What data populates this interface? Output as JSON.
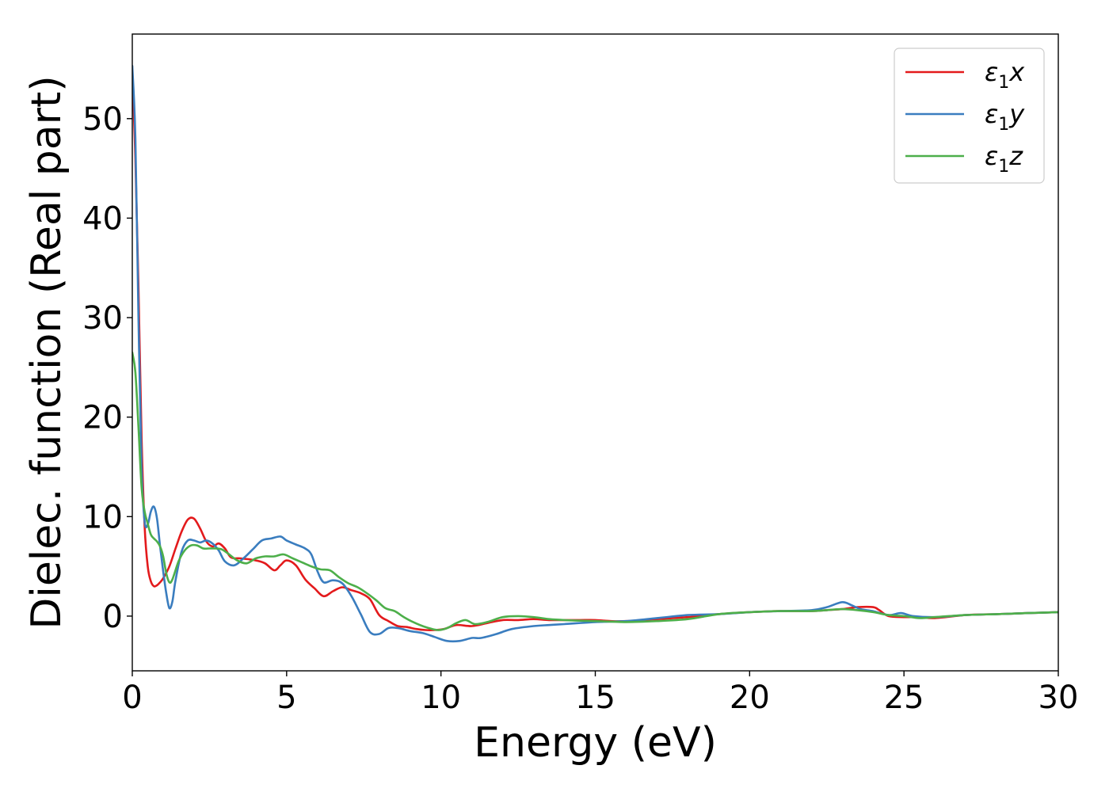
{
  "chart_data": {
    "type": "line",
    "xlabel": "Energy (eV)",
    "ylabel": "Dielec. function (Real part)",
    "xlim": [
      0,
      30
    ],
    "ylim": [
      -5.5,
      58.5
    ],
    "xticks": [
      0,
      5,
      10,
      15,
      20,
      25,
      30
    ],
    "yticks": [
      0,
      10,
      20,
      30,
      40,
      50
    ],
    "grid": false,
    "legend_position": "top-right",
    "series": [
      {
        "name": "ε1x",
        "legend_main": "ε",
        "legend_sub": "1",
        "legend_suffix": "x",
        "color": "#e31a1c",
        "x": [
          0,
          0.1,
          0.2,
          0.3,
          0.4,
          0.5,
          0.6,
          0.7,
          0.8,
          0.9,
          1.0,
          1.2,
          1.4,
          1.6,
          1.8,
          2.0,
          2.2,
          2.4,
          2.6,
          2.8,
          3.0,
          3.2,
          3.5,
          3.8,
          4.0,
          4.3,
          4.6,
          4.8,
          5.0,
          5.3,
          5.6,
          5.9,
          6.2,
          6.5,
          6.8,
          7.1,
          7.4,
          7.7,
          8.0,
          8.3,
          8.6,
          8.9,
          9.2,
          9.5,
          9.8,
          10.1,
          10.5,
          11.0,
          11.5,
          12.0,
          12.5,
          13.0,
          13.5,
          14.0,
          14.5,
          15.0,
          15.5,
          16.0,
          17.0,
          18.0,
          19.0,
          20.0,
          21.0,
          22.0,
          22.5,
          23.0,
          23.5,
          24.0,
          24.2,
          24.5,
          25.0,
          25.5,
          26.0,
          27.0,
          28.0,
          29.0,
          30.0
        ],
        "y": [
          54.5,
          46,
          33,
          18,
          9,
          5,
          3.5,
          3.0,
          3.1,
          3.4,
          3.8,
          5.0,
          6.8,
          8.5,
          9.7,
          9.8,
          8.8,
          7.5,
          7.0,
          7.3,
          6.8,
          5.9,
          5.8,
          5.7,
          5.6,
          5.3,
          4.6,
          5.1,
          5.6,
          5.1,
          3.7,
          2.8,
          2.0,
          2.5,
          2.9,
          2.6,
          2.3,
          1.7,
          0.1,
          -0.5,
          -1.0,
          -1.1,
          -1.3,
          -1.4,
          -1.4,
          -1.3,
          -0.9,
          -1.0,
          -0.7,
          -0.4,
          -0.4,
          -0.3,
          -0.4,
          -0.4,
          -0.4,
          -0.4,
          -0.5,
          -0.5,
          -0.3,
          -0.1,
          0.2,
          0.4,
          0.5,
          0.5,
          0.6,
          0.7,
          0.9,
          0.9,
          0.6,
          0.0,
          -0.1,
          -0.1,
          -0.2,
          0.1,
          0.2,
          0.3,
          0.4
        ]
      },
      {
        "name": "ε1y",
        "legend_main": "ε",
        "legend_sub": "1",
        "legend_suffix": "y",
        "color": "#3a7dbf",
        "x": [
          0,
          0.1,
          0.2,
          0.3,
          0.4,
          0.5,
          0.6,
          0.7,
          0.8,
          0.9,
          1.0,
          1.1,
          1.2,
          1.3,
          1.4,
          1.6,
          1.8,
          2.0,
          2.2,
          2.4,
          2.6,
          2.8,
          3.0,
          3.3,
          3.6,
          3.9,
          4.2,
          4.5,
          4.8,
          5.0,
          5.3,
          5.6,
          5.8,
          6.0,
          6.2,
          6.5,
          6.8,
          7.1,
          7.4,
          7.7,
          8.0,
          8.3,
          8.6,
          9.0,
          9.4,
          9.8,
          10.2,
          10.6,
          11.0,
          11.3,
          11.8,
          12.3,
          13.0,
          13.5,
          14.0,
          15.0,
          16.0,
          17.0,
          18.0,
          19.0,
          20.0,
          21.0,
          22.0,
          22.5,
          23.0,
          23.3,
          23.6,
          24.0,
          24.5,
          24.9,
          25.3,
          26.0,
          27.0,
          28.0,
          29.0,
          30.0
        ],
        "y": [
          55.3,
          48,
          30,
          15,
          9.5,
          9.2,
          10.5,
          11.0,
          9.8,
          7.0,
          4.5,
          2.3,
          0.8,
          1.5,
          3.6,
          6.5,
          7.6,
          7.6,
          7.4,
          7.6,
          7.3,
          6.6,
          5.5,
          5.1,
          5.8,
          6.7,
          7.6,
          7.8,
          8.0,
          7.6,
          7.2,
          6.8,
          6.2,
          4.5,
          3.4,
          3.6,
          3.3,
          2.0,
          0.2,
          -1.6,
          -1.8,
          -1.2,
          -1.2,
          -1.5,
          -1.7,
          -2.1,
          -2.5,
          -2.5,
          -2.2,
          -2.2,
          -1.8,
          -1.3,
          -1.0,
          -0.9,
          -0.8,
          -0.6,
          -0.5,
          -0.2,
          0.1,
          0.2,
          0.4,
          0.5,
          0.6,
          0.9,
          1.4,
          1.1,
          0.7,
          0.5,
          0.1,
          0.3,
          0.0,
          -0.1,
          0.1,
          0.2,
          0.3,
          0.4
        ]
      },
      {
        "name": "ε1z",
        "legend_main": "ε",
        "legend_sub": "1",
        "legend_suffix": "z",
        "color": "#4daf4a",
        "x": [
          0,
          0.1,
          0.2,
          0.3,
          0.4,
          0.5,
          0.6,
          0.7,
          0.8,
          0.9,
          1.0,
          1.1,
          1.2,
          1.3,
          1.5,
          1.7,
          1.9,
          2.1,
          2.3,
          2.5,
          2.7,
          2.9,
          3.1,
          3.4,
          3.7,
          4.0,
          4.3,
          4.6,
          4.9,
          5.2,
          5.5,
          5.8,
          6.1,
          6.4,
          6.7,
          7.0,
          7.3,
          7.6,
          7.9,
          8.2,
          8.5,
          8.8,
          9.1,
          9.5,
          9.9,
          10.2,
          10.5,
          10.8,
          11.1,
          11.5,
          12.0,
          12.5,
          13.0,
          13.5,
          14.0,
          15.0,
          16.0,
          17.0,
          18.0,
          19.0,
          20.0,
          21.0,
          22.0,
          22.5,
          23.0,
          23.5,
          24.0,
          24.5,
          25.0,
          25.5,
          26.0,
          27.0,
          28.0,
          29.0,
          30.0
        ],
        "y": [
          26.5,
          24.5,
          19,
          13,
          10.5,
          9.3,
          8.2,
          7.8,
          7.5,
          7.0,
          6.0,
          4.3,
          3.4,
          3.7,
          5.5,
          6.6,
          7.1,
          7.1,
          6.8,
          6.8,
          6.8,
          6.7,
          6.3,
          5.6,
          5.3,
          5.8,
          6.0,
          6.0,
          6.2,
          5.8,
          5.4,
          5.0,
          4.7,
          4.6,
          3.9,
          3.3,
          2.9,
          2.3,
          1.6,
          0.8,
          0.5,
          -0.1,
          -0.6,
          -1.1,
          -1.4,
          -1.2,
          -0.7,
          -0.4,
          -0.8,
          -0.6,
          -0.1,
          0.0,
          -0.1,
          -0.3,
          -0.4,
          -0.5,
          -0.6,
          -0.5,
          -0.3,
          0.2,
          0.4,
          0.5,
          0.5,
          0.6,
          0.7,
          0.6,
          0.4,
          0.1,
          0.0,
          -0.2,
          -0.1,
          0.1,
          0.2,
          0.3,
          0.4
        ]
      }
    ]
  }
}
